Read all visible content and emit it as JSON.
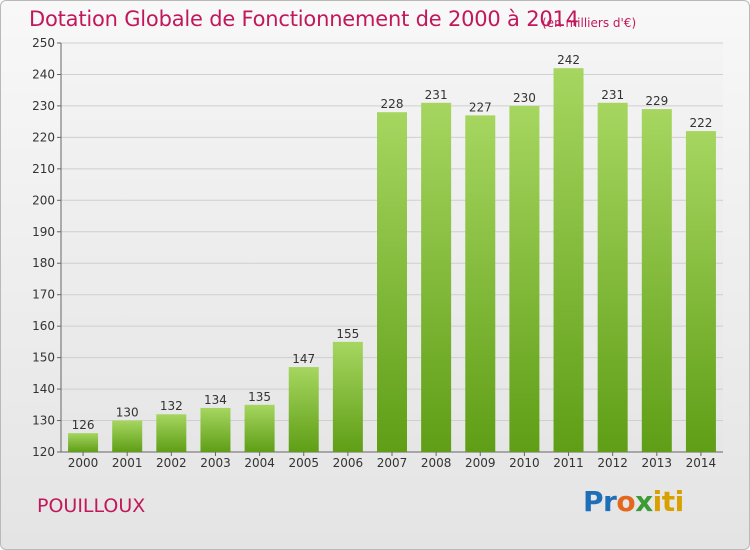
{
  "title": "Dotation Globale de Fonctionnement de 2000 à 2014",
  "subtitle": "(en milliers d'€)",
  "commune": "POUILLOUX",
  "logo": {
    "p1": "Pr",
    "p2": "o",
    "p3": "x",
    "p4": "iti"
  },
  "colors": {
    "accent": "#c2185b",
    "bar_top": "#a6d660",
    "bar_bottom": "#5f9e16"
  },
  "chart_data": {
    "type": "bar",
    "title": "Dotation Globale de Fonctionnement de 2000 à 2014",
    "subtitle": "(en milliers d'€)",
    "xlabel": "",
    "ylabel": "",
    "categories": [
      "2000",
      "2001",
      "2002",
      "2003",
      "2004",
      "2005",
      "2006",
      "2007",
      "2008",
      "2009",
      "2010",
      "2011",
      "2012",
      "2013",
      "2014"
    ],
    "values": [
      126,
      130,
      132,
      134,
      135,
      147,
      155,
      228,
      231,
      227,
      230,
      242,
      231,
      229,
      222
    ],
    "ylim": [
      120,
      250
    ],
    "yticks": [
      120,
      130,
      140,
      150,
      160,
      170,
      180,
      190,
      200,
      210,
      220,
      230,
      240,
      250
    ],
    "grid": true,
    "data_labels": true
  }
}
